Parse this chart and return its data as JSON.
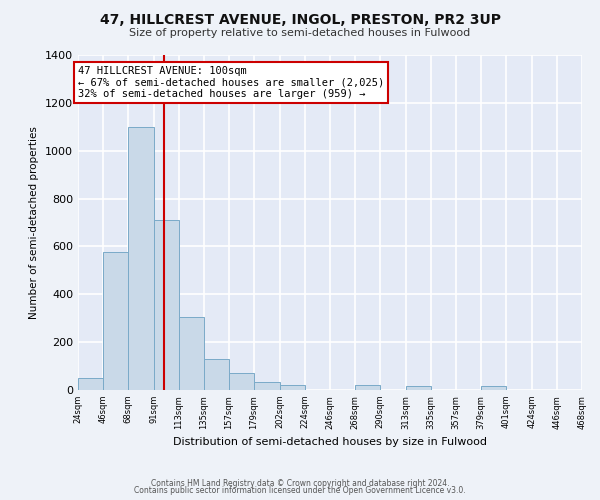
{
  "title": "47, HILLCREST AVENUE, INGOL, PRESTON, PR2 3UP",
  "subtitle": "Size of property relative to semi-detached houses in Fulwood",
  "xlabel": "Distribution of semi-detached houses by size in Fulwood",
  "ylabel": "Number of semi-detached properties",
  "bin_edges": [
    24,
    46,
    68,
    91,
    113,
    135,
    157,
    179,
    202,
    224,
    246,
    268,
    290,
    313,
    335,
    357,
    379,
    401,
    424,
    446,
    468
  ],
  "bar_heights": [
    50,
    575,
    1100,
    710,
    305,
    130,
    70,
    35,
    20,
    0,
    0,
    20,
    0,
    15,
    0,
    0,
    15,
    0,
    0,
    0
  ],
  "bar_color": "#c9d9e8",
  "bar_edgecolor": "#7aaac8",
  "property_size": 100,
  "vline_color": "#cc0000",
  "annotation_line1": "47 HILLCREST AVENUE: 100sqm",
  "annotation_line2": "← 67% of semi-detached houses are smaller (2,025)",
  "annotation_line3": "32% of semi-detached houses are larger (959) →",
  "annotation_box_color": "#ffffff",
  "annotation_box_edgecolor": "#cc0000",
  "ylim": [
    0,
    1400
  ],
  "yticks": [
    0,
    200,
    400,
    600,
    800,
    1000,
    1200,
    1400
  ],
  "footer_line1": "Contains HM Land Registry data © Crown copyright and database right 2024.",
  "footer_line2": "Contains public sector information licensed under the Open Government Licence v3.0.",
  "bg_color": "#eef2f8",
  "plot_bg_color": "#e4eaf6",
  "grid_color": "#ffffff",
  "title_fontsize": 10,
  "subtitle_fontsize": 8
}
